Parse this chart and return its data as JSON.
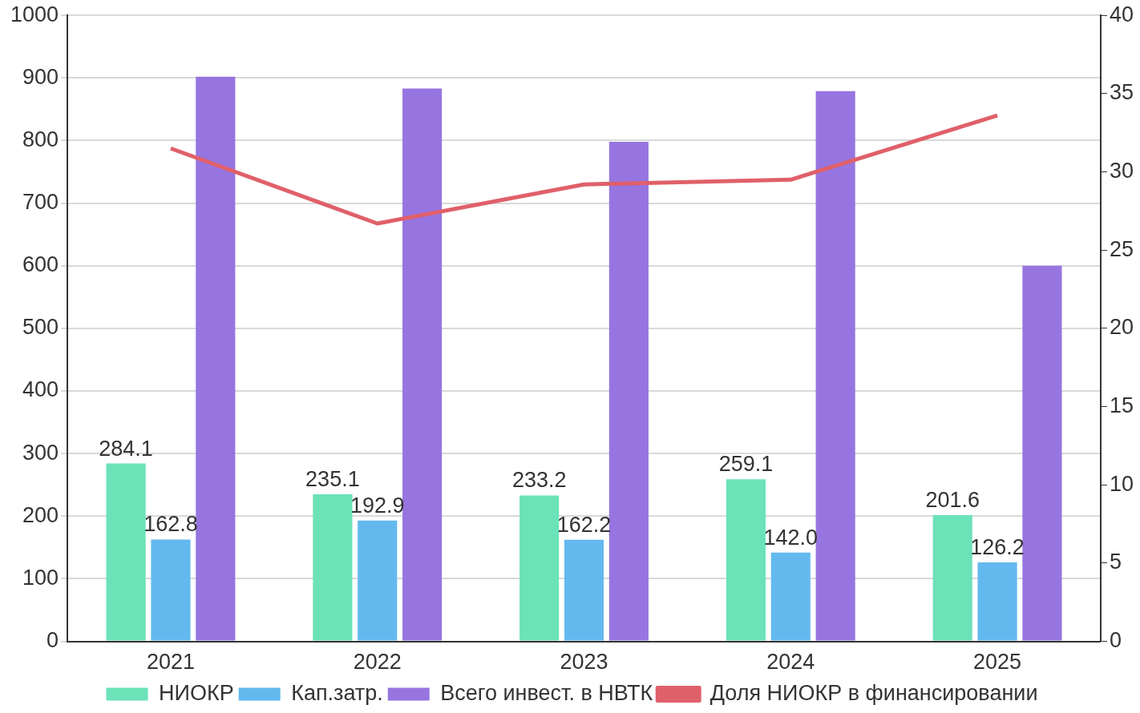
{
  "chart_data": {
    "type": "bar",
    "categories": [
      "2021",
      "2022",
      "2023",
      "2024",
      "2025"
    ],
    "series": [
      {
        "name": "НИОКР",
        "color": "#6ce2b8",
        "values": [
          284.1,
          235.1,
          233.2,
          259.1,
          201.6
        ],
        "value_labels": [
          "284.1",
          "235.1",
          "233.2",
          "259.1",
          "201.6"
        ]
      },
      {
        "name": "Кап.затр.",
        "color": "#63b9ee",
        "values": [
          162.8,
          192.9,
          162.2,
          142.0,
          126.2
        ],
        "value_labels": [
          "162.8",
          "192.9",
          "162.2",
          "142.0",
          "126.2"
        ]
      },
      {
        "name": "Всего инвест. в НВТК",
        "color": "#9775e0",
        "values": [
          902,
          883,
          798,
          879,
          600
        ]
      },
      {
        "name": "Доля НИОКР в финансировании",
        "type": "line",
        "axis": "y2",
        "color": "#e0606a",
        "values": [
          31.5,
          26.7,
          29.2,
          29.5,
          33.6
        ]
      }
    ],
    "ylim": [
      0,
      1000
    ],
    "yticks": [
      0,
      100,
      200,
      300,
      400,
      500,
      600,
      700,
      800,
      900,
      1000
    ],
    "y2lim": [
      0,
      40
    ],
    "y2ticks": [
      0,
      5,
      10,
      15,
      20,
      25,
      30,
      35,
      40
    ],
    "grid": "y",
    "legend": "bottom",
    "marker": "none"
  }
}
